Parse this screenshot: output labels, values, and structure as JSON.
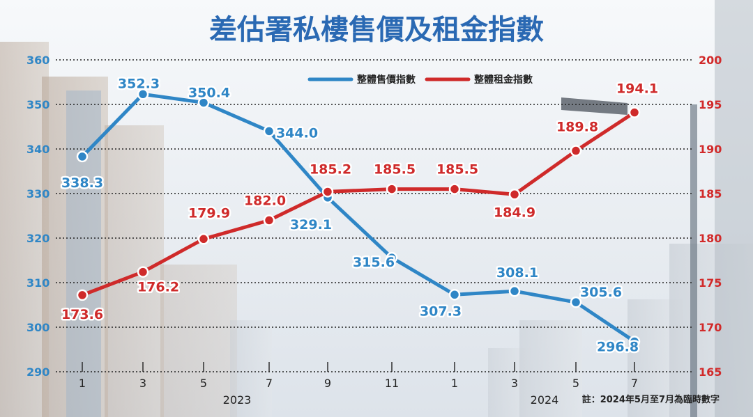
{
  "colors": {
    "sale": "#2f86c6",
    "rent": "#cf2a2a",
    "title": "#2a69b3"
  },
  "chart_data": {
    "type": "line",
    "title": "差估署私樓售價及租金指數",
    "categories": [
      "1",
      "3",
      "5",
      "7",
      "9",
      "11",
      "1",
      "3",
      "5",
      "7"
    ],
    "years": [
      {
        "label": "2023",
        "from_index": 0,
        "to_index": 5
      },
      {
        "label": "2024",
        "from_index": 6,
        "to_index": 9
      }
    ],
    "note": "註：2024年5月至7月為臨時數字",
    "legend_position": "top-center",
    "grid": true,
    "y_left": {
      "min": 290,
      "max": 360,
      "ticks": [
        "290",
        "300",
        "310",
        "320",
        "330",
        "340",
        "350",
        "360"
      ]
    },
    "y_right": {
      "min": 165,
      "max": 200,
      "ticks": [
        "165",
        "170",
        "175",
        "180",
        "185",
        "190",
        "195",
        "200"
      ]
    },
    "series": [
      {
        "name": "整體售價指數",
        "axis": "left",
        "values": [
          338.3,
          352.3,
          350.4,
          344.0,
          329.1,
          315.6,
          307.3,
          308.1,
          305.6,
          296.8
        ],
        "labels": [
          "338.3",
          "352.3",
          "350.4",
          "344.0",
          "329.1",
          "315.6",
          "307.3",
          "308.1",
          "305.6",
          "296.8"
        ]
      },
      {
        "name": "整體租金指數",
        "axis": "right",
        "values": [
          173.6,
          176.2,
          179.9,
          182.0,
          185.2,
          185.5,
          185.5,
          184.9,
          189.8,
          194.1
        ],
        "labels": [
          "173.6",
          "176.2",
          "179.9",
          "182.0",
          "185.2",
          "185.5",
          "185.5",
          "184.9",
          "189.8",
          "194.1"
        ]
      }
    ]
  }
}
